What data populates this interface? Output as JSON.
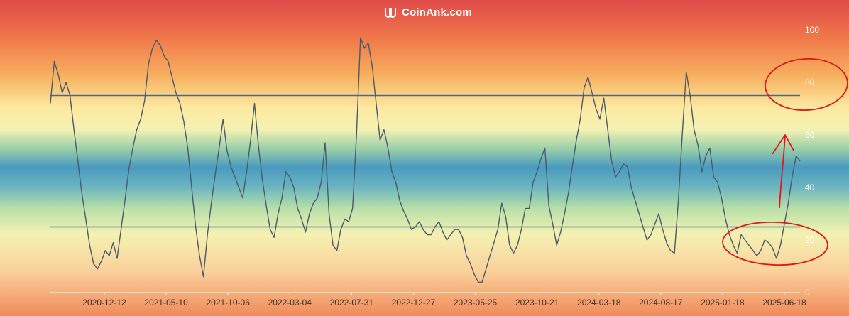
{
  "brand": {
    "name": "CoinAnk.com",
    "icon": "coinank-logo-icon"
  },
  "colors": {
    "line": "#4a5a6a",
    "threshold": "#4a6a8a",
    "annotation": "#e01818",
    "gradient_top": "#e04a4a",
    "gradient_mid": "#4a9ac0",
    "gradient_bottom": "#f08a5a"
  },
  "chart_data": {
    "type": "line",
    "x_ticks": [
      "2020-12-12",
      "2021-05-10",
      "2021-10-06",
      "2022-03-04",
      "2022-07-31",
      "2022-12-27",
      "2023-05-25",
      "2023-10-21",
      "2024-03-18",
      "2024-08-17",
      "2025-01-18",
      "2025-06-18"
    ],
    "y_ticks": [
      0,
      20,
      40,
      60,
      80,
      100
    ],
    "ylim": [
      0,
      100
    ],
    "thresholds": [
      75,
      25
    ],
    "annotations": [
      "circle around upper threshold at right",
      "circle around recent low values",
      "upward arrow"
    ],
    "series": [
      {
        "values": [
          72,
          88,
          83,
          76,
          80,
          75,
          62,
          50,
          38,
          28,
          18,
          11,
          9,
          12,
          16,
          14,
          19,
          13,
          24,
          35,
          47,
          55,
          62,
          66,
          73,
          87,
          93,
          96,
          94,
          90,
          88,
          82,
          76,
          72,
          65,
          55,
          40,
          25,
          14,
          6,
          22,
          34,
          45,
          55,
          66,
          54,
          48,
          44,
          40,
          36,
          46,
          58,
          72,
          56,
          43,
          33,
          24,
          21,
          30,
          36,
          46,
          44,
          40,
          32,
          28,
          23,
          30,
          34,
          36,
          42,
          57,
          30,
          18,
          16,
          24,
          28,
          27,
          32,
          60,
          97,
          93,
          95,
          86,
          72,
          58,
          62,
          55,
          46,
          42,
          35,
          31,
          28,
          24,
          25,
          27,
          24,
          22,
          22,
          25,
          27,
          23,
          20,
          22,
          24,
          24,
          21,
          14,
          11,
          7,
          4,
          4,
          9,
          14,
          19,
          24,
          34,
          29,
          18,
          15,
          18,
          24,
          32,
          32,
          42,
          46,
          51,
          55,
          33,
          26,
          18,
          23,
          30,
          38,
          48,
          58,
          66,
          78,
          82,
          76,
          70,
          66,
          74,
          62,
          50,
          44,
          46,
          49,
          48,
          40,
          35,
          30,
          25,
          20,
          22,
          26,
          30,
          24,
          19,
          16,
          15,
          35,
          60,
          84,
          75,
          62,
          56,
          46,
          52,
          55,
          44,
          42,
          36,
          28,
          22,
          18,
          15,
          22,
          20,
          18,
          16,
          14,
          16,
          20,
          19,
          17,
          13,
          18,
          26,
          34,
          44,
          52,
          50
        ]
      }
    ]
  }
}
